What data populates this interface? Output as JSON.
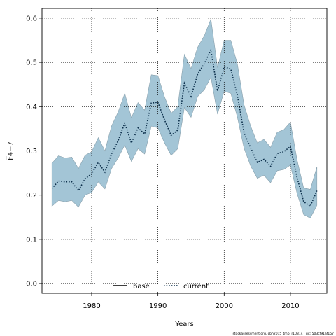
{
  "chart_data": {
    "type": "area",
    "xlabel": "Years",
    "ylabel": "F̅4−7",
    "xlim": [
      1972.5,
      2015.5
    ],
    "ylim": [
      -0.022,
      0.622
    ],
    "xticks": [
      1980,
      1990,
      2000,
      2010
    ],
    "yticks": [
      0.0,
      0.1,
      0.2,
      0.3,
      0.4,
      0.5,
      0.6
    ],
    "ytick_labels": [
      "0.0",
      "0.1",
      "0.2",
      "0.3",
      "0.4",
      "0.5",
      "0.6"
    ],
    "grid": true,
    "legend": {
      "placement": "bottom-center",
      "entries": [
        {
          "name": "base",
          "style": "solid",
          "color": "#000000"
        },
        {
          "name": "current",
          "style": "dotted",
          "color": "#0b2e4a"
        }
      ]
    },
    "band_color": "#a3c5d6",
    "band_edge_color": "#8aa1ad",
    "x": [
      1974,
      1975,
      1976,
      1977,
      1978,
      1979,
      1980,
      1981,
      1982,
      1983,
      1984,
      1985,
      1986,
      1987,
      1988,
      1989,
      1990,
      1991,
      1992,
      1993,
      1994,
      1995,
      1996,
      1997,
      1998,
      1999,
      2000,
      2001,
      2002,
      2003,
      2004,
      2005,
      2006,
      2007,
      2008,
      2009,
      2010,
      2011,
      2012,
      2013,
      2014
    ],
    "series": [
      {
        "name": "current",
        "values": [
          0.215,
          0.232,
          0.23,
          0.23,
          0.21,
          0.237,
          0.248,
          0.274,
          0.252,
          0.293,
          0.323,
          0.363,
          0.318,
          0.352,
          0.338,
          0.408,
          0.41,
          0.37,
          0.335,
          0.347,
          0.453,
          0.423,
          0.473,
          0.497,
          0.528,
          0.435,
          0.49,
          0.485,
          0.425,
          0.341,
          0.307,
          0.274,
          0.281,
          0.265,
          0.294,
          0.298,
          0.31,
          0.24,
          0.185,
          0.175,
          0.21
        ],
        "lower": [
          0.175,
          0.188,
          0.185,
          0.188,
          0.173,
          0.2,
          0.206,
          0.23,
          0.214,
          0.26,
          0.284,
          0.313,
          0.276,
          0.305,
          0.293,
          0.356,
          0.352,
          0.318,
          0.29,
          0.305,
          0.398,
          0.376,
          0.423,
          0.438,
          0.466,
          0.383,
          0.435,
          0.43,
          0.376,
          0.306,
          0.266,
          0.238,
          0.245,
          0.228,
          0.255,
          0.258,
          0.268,
          0.204,
          0.156,
          0.148,
          0.177
        ],
        "upper": [
          0.272,
          0.289,
          0.284,
          0.286,
          0.26,
          0.29,
          0.298,
          0.33,
          0.3,
          0.356,
          0.388,
          0.43,
          0.375,
          0.409,
          0.392,
          0.472,
          0.47,
          0.422,
          0.385,
          0.4,
          0.518,
          0.486,
          0.534,
          0.56,
          0.598,
          0.488,
          0.55,
          0.55,
          0.496,
          0.404,
          0.356,
          0.318,
          0.326,
          0.308,
          0.342,
          0.348,
          0.365,
          0.28,
          0.216,
          0.213,
          0.264
        ]
      }
    ]
  },
  "footnote": "stockassessment.org, cbh2015_tmb, r10314 , git: 503cf91af157"
}
